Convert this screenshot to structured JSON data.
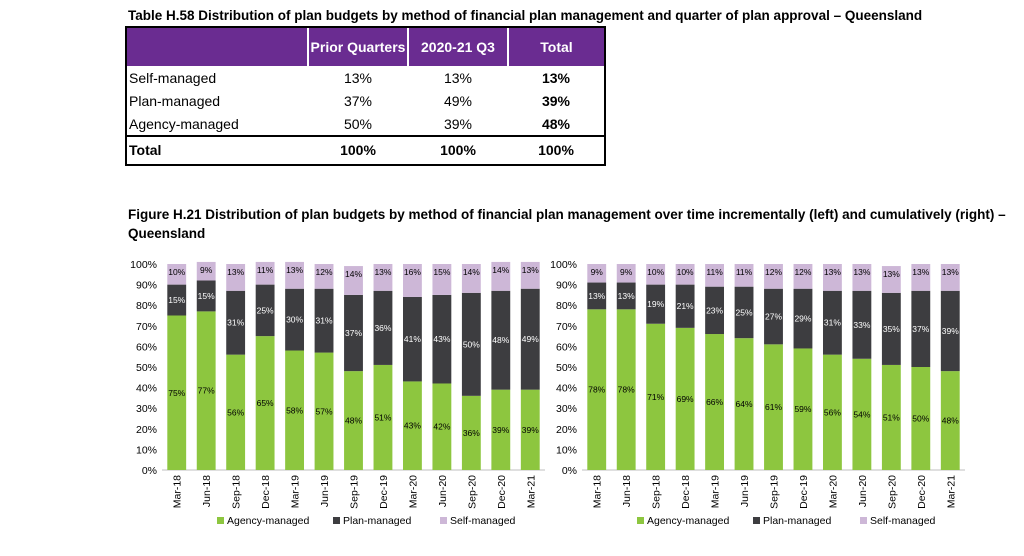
{
  "table": {
    "title": "Table H.58 Distribution of plan budgets by method of financial plan management and quarter of plan approval – Queensland",
    "headers": [
      "",
      "Prior Quarters",
      "2020-21 Q3",
      "Total"
    ],
    "rows": [
      {
        "label": "Self-managed",
        "prior": "13%",
        "q3": "13%",
        "total": "13%"
      },
      {
        "label": "Plan-managed",
        "prior": "37%",
        "q3": "49%",
        "total": "39%"
      },
      {
        "label": "Agency-managed",
        "prior": "50%",
        "q3": "39%",
        "total": "48%"
      }
    ],
    "total_row": {
      "label": "Total",
      "prior": "100%",
      "q3": "100%",
      "total": "100%"
    }
  },
  "figure": {
    "title": "Figure H.21 Distribution of plan budgets by method of financial plan management over time incrementally (left) and cumulatively (right) – Queensland"
  },
  "colors": {
    "agency": "#8dc63f",
    "plan": "#3d3d40",
    "self": "#cdb7d7",
    "header": "#6a2c91"
  },
  "chart_data": [
    {
      "type": "bar",
      "stacked": true,
      "categories": [
        "Mar-18",
        "Jun-18",
        "Sep-18",
        "Dec-18",
        "Mar-19",
        "Jun-19",
        "Sep-19",
        "Dec-19",
        "Mar-20",
        "Jun-20",
        "Sep-20",
        "Dec-20",
        "Mar-21"
      ],
      "series": [
        {
          "name": "Agency-managed",
          "values": [
            75,
            77,
            56,
            65,
            58,
            57,
            48,
            51,
            43,
            42,
            36,
            39,
            39
          ]
        },
        {
          "name": "Plan-managed",
          "values": [
            15,
            15,
            31,
            25,
            30,
            31,
            37,
            36,
            41,
            43,
            50,
            48,
            49
          ]
        },
        {
          "name": "Self-managed",
          "values": [
            10,
            9,
            13,
            11,
            13,
            12,
            14,
            13,
            16,
            15,
            14,
            14,
            13
          ]
        }
      ],
      "yticks": [
        "0%",
        "10%",
        "20%",
        "30%",
        "40%",
        "50%",
        "60%",
        "70%",
        "80%",
        "90%",
        "100%"
      ],
      "ylim": [
        0,
        100
      ],
      "legend": "bottom"
    },
    {
      "type": "bar",
      "stacked": true,
      "categories": [
        "Mar-18",
        "Jun-18",
        "Sep-18",
        "Dec-18",
        "Mar-19",
        "Jun-19",
        "Sep-19",
        "Dec-19",
        "Mar-20",
        "Jun-20",
        "Sep-20",
        "Dec-20",
        "Mar-21"
      ],
      "series": [
        {
          "name": "Agency-managed",
          "values": [
            78,
            78,
            71,
            69,
            66,
            64,
            61,
            59,
            56,
            54,
            51,
            50,
            48
          ]
        },
        {
          "name": "Plan-managed",
          "values": [
            13,
            13,
            19,
            21,
            23,
            25,
            27,
            29,
            31,
            33,
            35,
            37,
            39
          ]
        },
        {
          "name": "Self-managed",
          "values": [
            9,
            9,
            10,
            10,
            11,
            11,
            12,
            12,
            13,
            13,
            13,
            13,
            13
          ]
        }
      ],
      "yticks": [
        "0%",
        "10%",
        "20%",
        "30%",
        "40%",
        "50%",
        "60%",
        "70%",
        "80%",
        "90%",
        "100%"
      ],
      "ylim": [
        0,
        100
      ],
      "legend": "bottom"
    }
  ]
}
